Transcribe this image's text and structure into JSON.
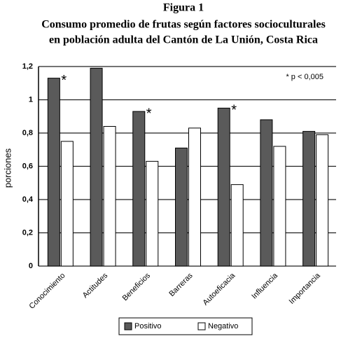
{
  "chart_data": {
    "type": "bar",
    "title": "Figura  1",
    "subtitle": [
      "Consumo promedio de frutas según factores socioculturales",
      "en población adulta del Cantón de La Unión, Costa Rica"
    ],
    "y_label": "porciones",
    "annotation": "* p < 0,005",
    "categories": [
      "Conocimiento",
      "Actitudes",
      "Beneficios",
      "Barreras",
      "Autoeficacia",
      "Influencia",
      "Importancia"
    ],
    "series": [
      {
        "name": "Positivo",
        "color": "#5a5a5a",
        "values": [
          1.13,
          1.19,
          0.93,
          0.71,
          0.95,
          0.88,
          0.81
        ]
      },
      {
        "name": "Negativo",
        "color": "#ffffff",
        "values": [
          0.75,
          0.84,
          0.63,
          0.83,
          0.49,
          0.72,
          0.79
        ]
      }
    ],
    "significance": [
      "*",
      null,
      "*",
      null,
      "*",
      null,
      null
    ],
    "ylim": [
      0,
      1.2
    ],
    "yticks": [
      0,
      {
        "value": 0.2,
        "label": "0,2"
      },
      {
        "value": 0.4,
        "label": "0,4"
      },
      {
        "value": 0.6,
        "label": "0,6"
      },
      {
        "value": 0.8,
        "label": "0,8"
      },
      1,
      {
        "value": 1.2,
        "label": "1,2"
      }
    ],
    "grid": true
  }
}
